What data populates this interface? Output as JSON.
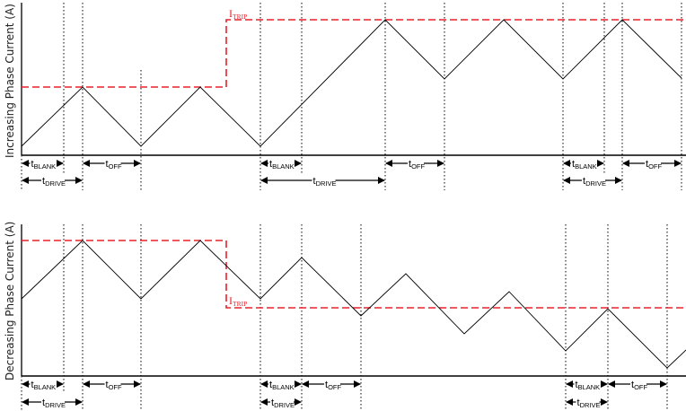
{
  "colors": {
    "trip": "#e8202a",
    "waveform": "#000000",
    "grid": "#000000"
  },
  "top_panel": {
    "ylabel": "Increasing Phase Current (A)",
    "trip_label": {
      "main": "I",
      "sub": "TRIP"
    }
  },
  "bottom_panel": {
    "ylabel": "Decreasing Phase Current (A)",
    "trip_label": {
      "main": "I",
      "sub": "TRIP"
    }
  },
  "labels": {
    "t_blank": {
      "main": "t",
      "sub": "BLANK"
    },
    "t_off": {
      "main": "t",
      "sub": "OFF"
    },
    "t_drive": {
      "main": "t",
      "sub": "DRIVE"
    }
  }
}
